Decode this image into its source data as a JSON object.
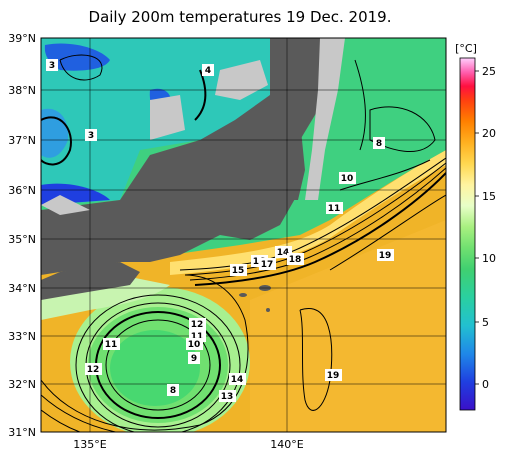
{
  "title": "Daily 200m temperatures 19 Dec. 2019.",
  "lat_labels": [
    "39°N",
    "38°N",
    "37°N",
    "36°N",
    "35°N",
    "34°N",
    "33°N",
    "32°N",
    "31°N"
  ],
  "lon_labels": [
    "135°E",
    "140°E"
  ],
  "colorbar": {
    "unit": "[°C]",
    "ticks": [
      "25",
      "20",
      "15",
      "10",
      "5",
      "0"
    ],
    "colors": [
      "#3a10c8",
      "#1f3fe0",
      "#1f88e8",
      "#22c0d0",
      "#2ad0a0",
      "#40d070",
      "#70e070",
      "#a8f080",
      "#e8ffc8",
      "#fff4a0",
      "#ffd850",
      "#ffb020",
      "#ff8000",
      "#ff4010",
      "#ff1040",
      "#ff40a0",
      "#ff90e0",
      "#ffd0ff"
    ]
  },
  "contour_labels": [
    "3",
    "4",
    "3",
    "8",
    "10",
    "11",
    "19",
    "14",
    "18",
    "15",
    "16",
    "17",
    "11",
    "12",
    "12",
    "11",
    "10",
    "9",
    "8",
    "14",
    "13",
    "19"
  ],
  "colors": {
    "land": "#5a5a5a",
    "coast_grey": "#c8c8c8",
    "warm_ocean": "#f0b020",
    "cold_ocean": "#30c8c0"
  }
}
